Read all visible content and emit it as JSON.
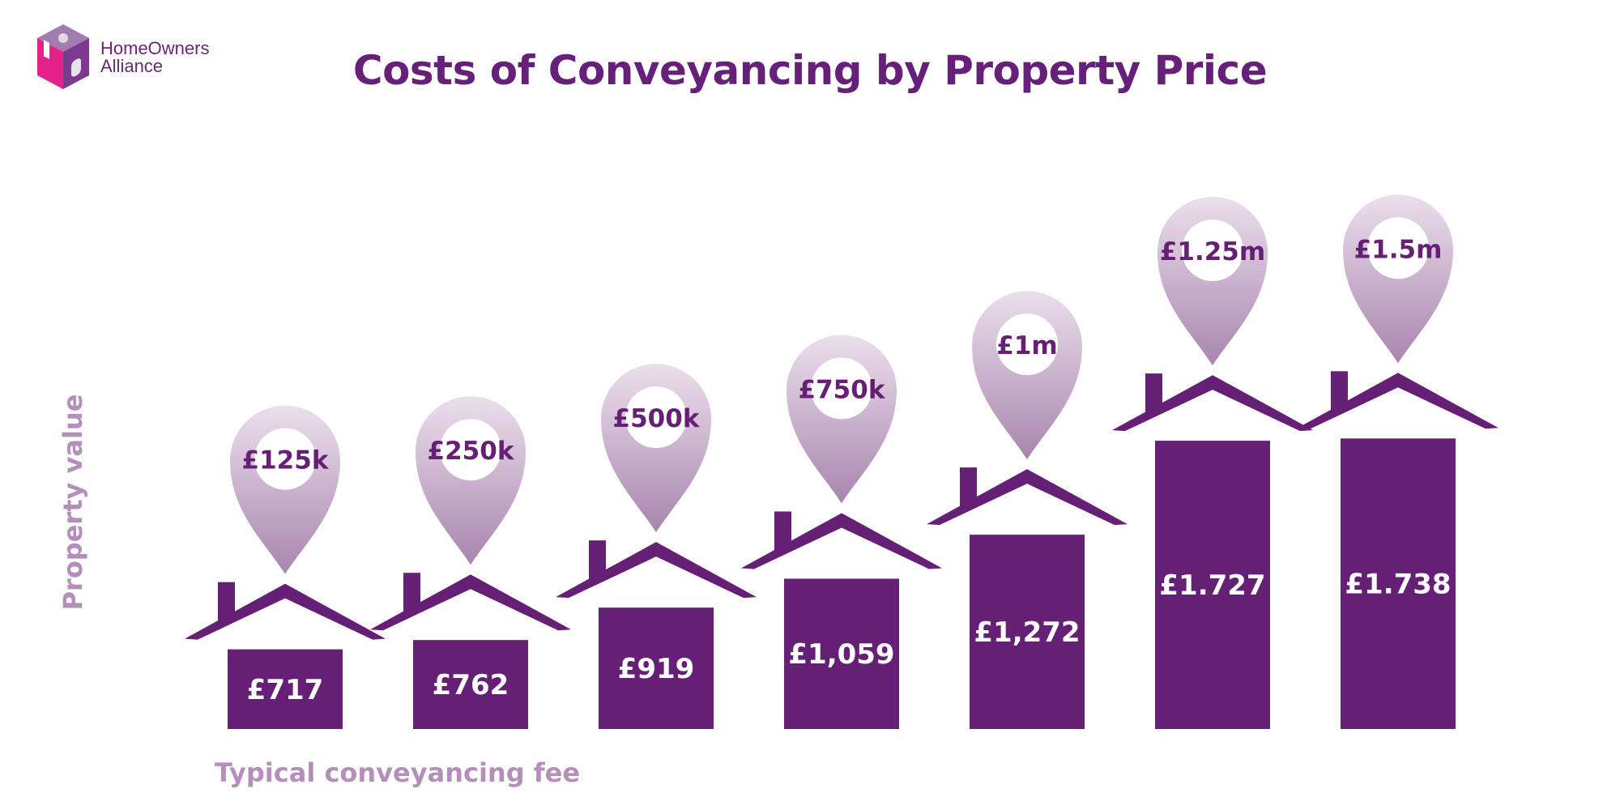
{
  "brand": {
    "line1": "HomeOwners",
    "line2": "Alliance"
  },
  "colors": {
    "bar": "#651f74",
    "pin_top": "#ebdfec",
    "pin_bottom": "#a886ae",
    "axis_label": "#b38fba",
    "logo_pink": "#e4208a",
    "logo_purple": "#7b3a8e"
  },
  "chart_data": {
    "type": "bar",
    "title": "Costs of Conveyancing by Property Price",
    "xlabel": "Typical conveyancing fee",
    "ylabel": "Property value",
    "categories": [
      "£125k",
      "£250k",
      "£500k",
      "£750k",
      "£1m",
      "£1.25m",
      "£1.5m"
    ],
    "property_values": [
      125000,
      250000,
      500000,
      750000,
      1000000,
      1250000,
      1500000
    ],
    "values": [
      717,
      762,
      919,
      1059,
      1272,
      1727,
      1738
    ],
    "value_labels": [
      "£717",
      "£762",
      "£919",
      "£1,059",
      "£1,272",
      "£1.727",
      "£1.738"
    ],
    "legend": "none",
    "grid": false
  }
}
